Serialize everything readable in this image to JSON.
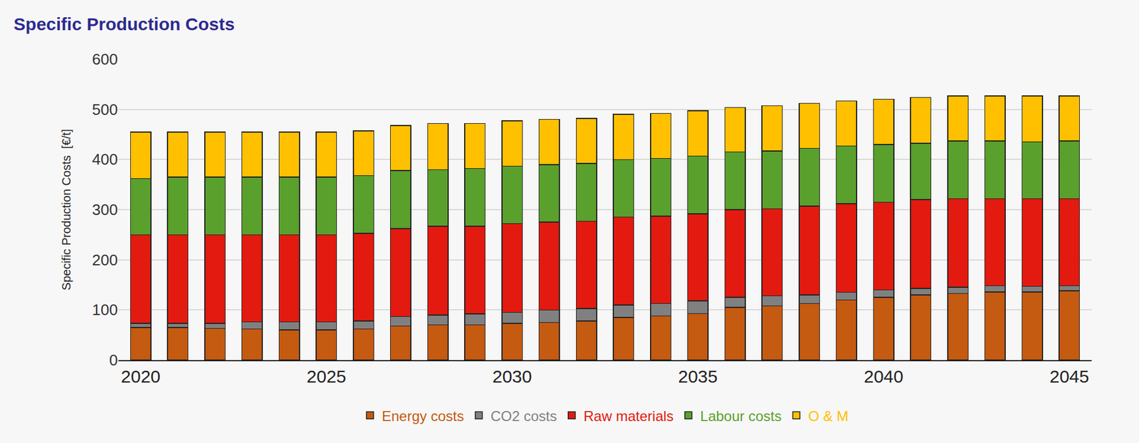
{
  "chart_data": {
    "type": "bar",
    "title": "Specific Production Costs",
    "y_label": "Specific Production Costs  [€/t]",
    "x": [
      2020,
      2021,
      2022,
      2023,
      2024,
      2025,
      2026,
      2027,
      2028,
      2029,
      2030,
      2031,
      2032,
      2033,
      2034,
      2035,
      2036,
      2037,
      2038,
      2039,
      2040,
      2041,
      2042,
      2043,
      2044,
      2045
    ],
    "series": [
      {
        "name": "Energy costs",
        "color": "#c55a11",
        "values": [
          65,
          65,
          63,
          62,
          60,
          60,
          62,
          68,
          70,
          70,
          73,
          75,
          78,
          85,
          88,
          93,
          105,
          108,
          113,
          120,
          125,
          130,
          133,
          136,
          136,
          138
        ]
      },
      {
        "name": "CO2 costs",
        "color": "#808080",
        "values": [
          8,
          8,
          10,
          14,
          16,
          16,
          16,
          19,
          20,
          22,
          22,
          25,
          25,
          25,
          25,
          25,
          20,
          20,
          17,
          15,
          15,
          13,
          12,
          12,
          11,
          10
        ]
      },
      {
        "name": "Raw materials",
        "color": "#e31a0f",
        "values": [
          177,
          177,
          177,
          174,
          174,
          174,
          175,
          175,
          177,
          175,
          177,
          175,
          174,
          175,
          174,
          174,
          175,
          174,
          177,
          177,
          175,
          177,
          177,
          174,
          175,
          174
        ]
      },
      {
        "name": "Labour costs",
        "color": "#5aa02c",
        "values": [
          112,
          115,
          115,
          115,
          115,
          115,
          115,
          116,
          113,
          115,
          115,
          115,
          115,
          115,
          115,
          115,
          115,
          115,
          115,
          115,
          115,
          112,
          115,
          115,
          113,
          115
        ]
      },
      {
        "name": "O & M",
        "color": "#ffc000",
        "values": [
          93,
          90,
          90,
          90,
          90,
          90,
          89,
          90,
          92,
          90,
          90,
          90,
          90,
          90,
          90,
          90,
          89,
          90,
          90,
          90,
          90,
          92,
          90,
          90,
          92,
          90
        ]
      }
    ],
    "stacked": true,
    "xlim": [
      2019.4,
      2045.6
    ],
    "xticks": [
      2020,
      2025,
      2030,
      2035,
      2040,
      2045
    ],
    "ylim": [
      0,
      600
    ],
    "yticks": [
      0,
      100,
      200,
      300,
      400,
      500,
      600
    ],
    "grid": true,
    "legend": "bottom"
  }
}
